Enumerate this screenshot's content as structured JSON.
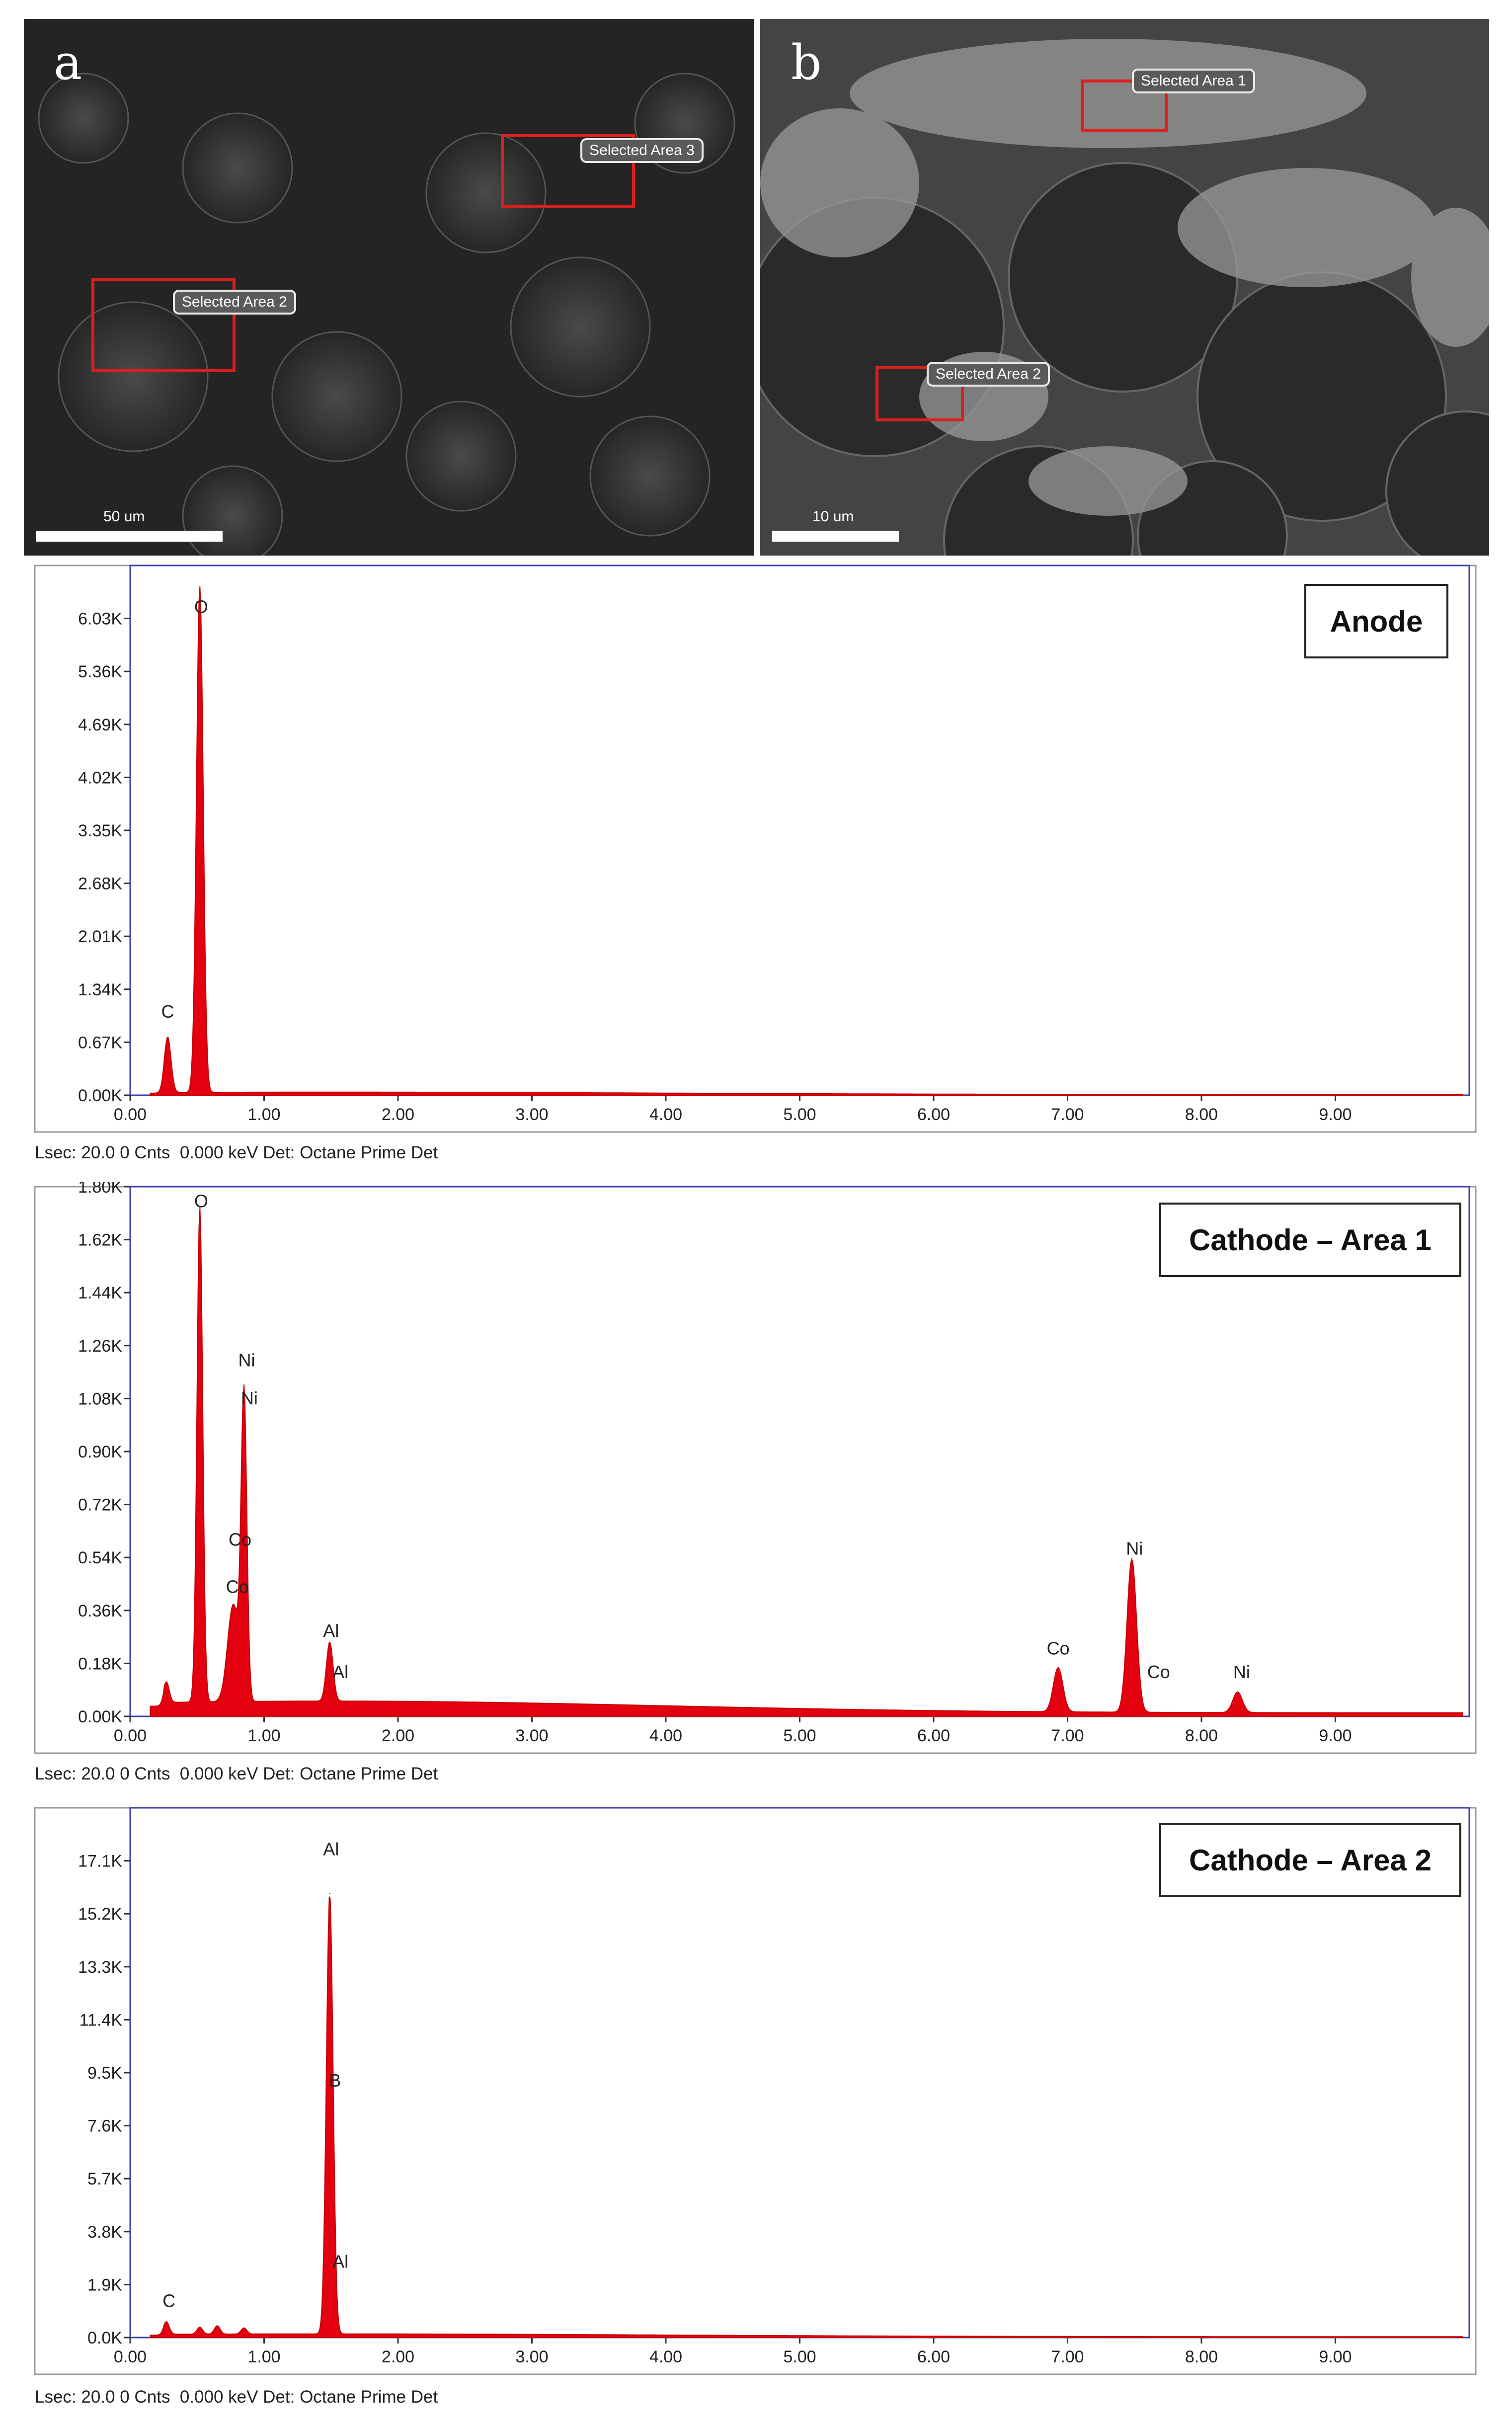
{
  "sem_panels": [
    {
      "letter": "a",
      "scale_label": "50 um",
      "areas": [
        {
          "label": "Selected Area 3"
        },
        {
          "label": "Selected Area 2"
        }
      ]
    },
    {
      "letter": "b",
      "scale_label": "10 um",
      "areas": [
        {
          "label": "Selected Area 1"
        },
        {
          "label": "Selected Area 2"
        }
      ]
    }
  ],
  "chart_data": [
    {
      "type": "line",
      "sample_label": "Anode",
      "footer": "Lsec: 20.0 0 Cnts  0.000 keV Det: Octane Prime Det",
      "xlim": [
        0,
        10
      ],
      "ylim": [
        0,
        6.7
      ],
      "x_ticks": [
        "0.00",
        "1.00",
        "2.00",
        "3.00",
        "4.00",
        "5.00",
        "6.00",
        "7.00",
        "8.00",
        "9.00"
      ],
      "y_ticks": [
        "0.00K",
        "0.67K",
        "1.34K",
        "2.01K",
        "2.68K",
        "3.35K",
        "4.02K",
        "4.69K",
        "5.36K",
        "6.03K"
      ],
      "peaks": [
        {
          "x": 0.28,
          "y": 0.7,
          "w": 0.035
        },
        {
          "x": 0.52,
          "y": 6.4,
          "w": 0.035
        }
      ],
      "baseline": 0.03,
      "peak_labels": [
        {
          "text": "C",
          "x": 0.28,
          "y": 0.98
        },
        {
          "text": "O",
          "x": 0.53,
          "y": 6.1
        }
      ]
    },
    {
      "type": "line",
      "sample_label": "Cathode – Area 1",
      "footer": "Lsec: 20.0 0 Cnts  0.000 keV Det: Octane Prime Det",
      "xlim": [
        0,
        10
      ],
      "ylim": [
        0,
        1.8
      ],
      "x_ticks": [
        "0.00",
        "1.00",
        "2.00",
        "3.00",
        "4.00",
        "5.00",
        "6.00",
        "7.00",
        "8.00",
        "9.00"
      ],
      "y_ticks": [
        "0.00K",
        "0.18K",
        "0.36K",
        "0.54K",
        "0.72K",
        "0.90K",
        "1.08K",
        "1.26K",
        "1.44K",
        "1.62K",
        "1.80K"
      ],
      "peaks": [
        {
          "x": 0.27,
          "y": 0.07,
          "w": 0.03
        },
        {
          "x": 0.52,
          "y": 1.68,
          "w": 0.03
        },
        {
          "x": 0.77,
          "y": 0.33,
          "w": 0.06
        },
        {
          "x": 0.85,
          "y": 1.02,
          "w": 0.03
        },
        {
          "x": 1.49,
          "y": 0.2,
          "w": 0.035
        },
        {
          "x": 6.93,
          "y": 0.15,
          "w": 0.05
        },
        {
          "x": 7.48,
          "y": 0.52,
          "w": 0.05
        },
        {
          "x": 8.27,
          "y": 0.07,
          "w": 0.05
        }
      ],
      "baseline": 0.04,
      "peak_labels": [
        {
          "text": "O",
          "x": 0.53,
          "y": 1.73
        },
        {
          "text": "Ni",
          "x": 0.87,
          "y": 1.19
        },
        {
          "text": "Ni",
          "x": 0.89,
          "y": 1.06
        },
        {
          "text": "Co",
          "x": 0.82,
          "y": 0.58
        },
        {
          "text": "Co",
          "x": 0.8,
          "y": 0.42
        },
        {
          "text": "Al",
          "x": 1.5,
          "y": 0.27
        },
        {
          "text": "Al",
          "x": 1.57,
          "y": 0.13
        },
        {
          "text": "Co",
          "x": 6.93,
          "y": 0.21
        },
        {
          "text": "Ni",
          "x": 7.5,
          "y": 0.55
        },
        {
          "text": "Co",
          "x": 7.68,
          "y": 0.13
        },
        {
          "text": "Ni",
          "x": 8.3,
          "y": 0.13
        }
      ]
    },
    {
      "type": "line",
      "sample_label": "Cathode – Area 2",
      "footer": "Lsec: 20.0 0 Cnts  0.000 keV Det: Octane Prime Det",
      "xlim": [
        0,
        10
      ],
      "ylim": [
        0,
        19.0
      ],
      "x_ticks": [
        "0.00",
        "1.00",
        "2.00",
        "3.00",
        "4.00",
        "5.00",
        "6.00",
        "7.00",
        "8.00",
        "9.00"
      ],
      "y_ticks": [
        "0.0K",
        "1.9K",
        "3.8K",
        "5.7K",
        "7.6K",
        "9.5K",
        "11.4K",
        "13.3K",
        "15.2K",
        "17.1K"
      ],
      "peaks": [
        {
          "x": 0.27,
          "y": 0.45,
          "w": 0.03
        },
        {
          "x": 0.52,
          "y": 0.25,
          "w": 0.03
        },
        {
          "x": 0.65,
          "y": 0.3,
          "w": 0.03
        },
        {
          "x": 0.85,
          "y": 0.22,
          "w": 0.03
        },
        {
          "x": 1.49,
          "y": 15.8,
          "w": 0.035
        }
      ],
      "baseline": 0.1,
      "peak_labels": [
        {
          "text": "Al",
          "x": 1.5,
          "y": 17.3
        },
        {
          "text": "B",
          "x": 1.53,
          "y": 9.0
        },
        {
          "text": "Al",
          "x": 1.57,
          "y": 2.5
        },
        {
          "text": "C",
          "x": 0.29,
          "y": 1.1
        }
      ]
    }
  ]
}
